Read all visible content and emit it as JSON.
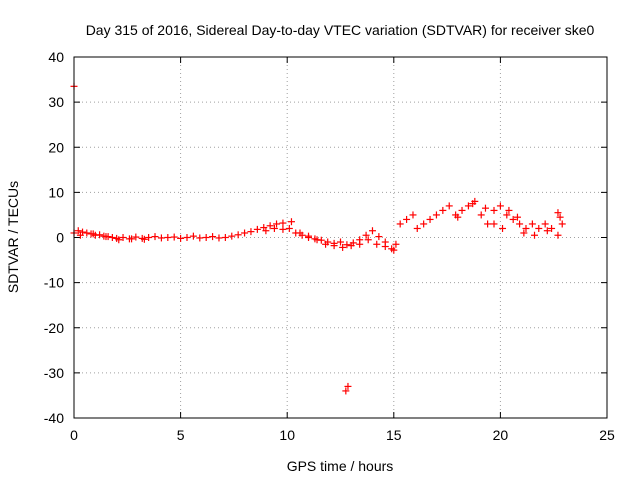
{
  "chart_data": {
    "type": "scatter",
    "title": "Day 315 of 2016, Sidereal Day-to-day VTEC variation (SDTVAR) for receiver ske0",
    "xlabel": "GPS time / hours",
    "ylabel": "SDTVAR / TECUs",
    "xlim": [
      0,
      25
    ],
    "ylim": [
      -40,
      40
    ],
    "xticks": [
      "0",
      "5",
      "10",
      "15",
      "20",
      "25"
    ],
    "xtick_values": [
      0,
      5,
      10,
      15,
      20,
      25
    ],
    "yticks": [
      "40",
      "30",
      "20",
      "10",
      "0",
      "-10",
      "-20",
      "-30",
      "-40"
    ],
    "ytick_values": [
      40,
      30,
      20,
      10,
      0,
      -10,
      -20,
      -30,
      -40
    ],
    "grid": true,
    "marker": "plus",
    "color": "#ff0000",
    "series": [
      {
        "name": "SDTVAR",
        "x": [
          0.0,
          0.2,
          0.4,
          0.6,
          0.8,
          1.0,
          1.2,
          1.4,
          1.6,
          1.8,
          2.0,
          2.3,
          2.6,
          2.9,
          3.2,
          3.5,
          3.8,
          4.1,
          4.4,
          4.7,
          5.0,
          5.3,
          5.6,
          5.9,
          6.2,
          6.5,
          6.8,
          7.1,
          7.4,
          7.7,
          8.0,
          8.3,
          8.6,
          8.9,
          9.2,
          9.5,
          9.8,
          10.1,
          10.4,
          10.7,
          11.0,
          11.3,
          11.6,
          11.9,
          12.2,
          12.5,
          12.8,
          13.1,
          13.4,
          13.7,
          14.0,
          14.3,
          14.6,
          14.9,
          15.1,
          15.3,
          15.6,
          15.9,
          16.1,
          16.4,
          16.7,
          17.0,
          17.3,
          17.6,
          17.9,
          18.2,
          18.5,
          18.8,
          19.1,
          19.4,
          19.7,
          20.0,
          20.3,
          20.6,
          20.9,
          21.2,
          21.5,
          21.8,
          22.1,
          22.4,
          22.7,
          22.9,
          0.3,
          0.9,
          1.5,
          2.1,
          2.7,
          3.3,
          9.0,
          9.4,
          9.8,
          10.2,
          10.6,
          11.0,
          11.4,
          11.8,
          12.2,
          12.6,
          13.0,
          13.4,
          13.8,
          14.2,
          14.6,
          15.0,
          18.0,
          18.7,
          19.3,
          19.7,
          20.1,
          20.4,
          20.8,
          21.1,
          21.6,
          22.2,
          22.7,
          22.8,
          0.0,
          12.75,
          12.85
        ],
        "y": [
          1.0,
          1.5,
          1.2,
          1.0,
          0.8,
          0.5,
          0.6,
          0.3,
          0.2,
          0.0,
          -0.2,
          0.0,
          -0.3,
          0.1,
          -0.2,
          0.0,
          0.2,
          -0.1,
          0.0,
          0.1,
          -0.2,
          0.0,
          0.3,
          -0.1,
          0.0,
          0.2,
          -0.1,
          0.0,
          0.3,
          0.6,
          1.0,
          1.3,
          1.8,
          2.2,
          2.6,
          3.0,
          3.2,
          2.0,
          1.0,
          0.5,
          0.0,
          -0.3,
          -0.6,
          -1.0,
          -1.3,
          -1.0,
          -1.6,
          -1.2,
          -0.5,
          0.5,
          1.5,
          0.2,
          -1.0,
          -2.5,
          -1.5,
          3.0,
          4.0,
          5.0,
          2.0,
          3.0,
          4.0,
          5.0,
          6.0,
          7.0,
          5.0,
          6.0,
          7.0,
          8.0,
          5.0,
          3.0,
          6.0,
          7.0,
          5.0,
          4.0,
          3.0,
          2.0,
          3.0,
          2.0,
          3.0,
          2.0,
          5.5,
          3.0,
          0.5,
          0.8,
          0.2,
          -0.5,
          -0.3,
          -0.4,
          1.5,
          2.0,
          1.8,
          3.5,
          1.0,
          0.3,
          -0.5,
          -1.5,
          -1.8,
          -2.2,
          -1.8,
          -1.5,
          -0.5,
          -1.5,
          -2.0,
          -2.8,
          4.5,
          7.5,
          6.5,
          3.0,
          2.0,
          6.0,
          4.5,
          1.0,
          0.5,
          1.5,
          0.5,
          4.5,
          33.5,
          -34.0,
          -33.0
        ]
      }
    ]
  }
}
